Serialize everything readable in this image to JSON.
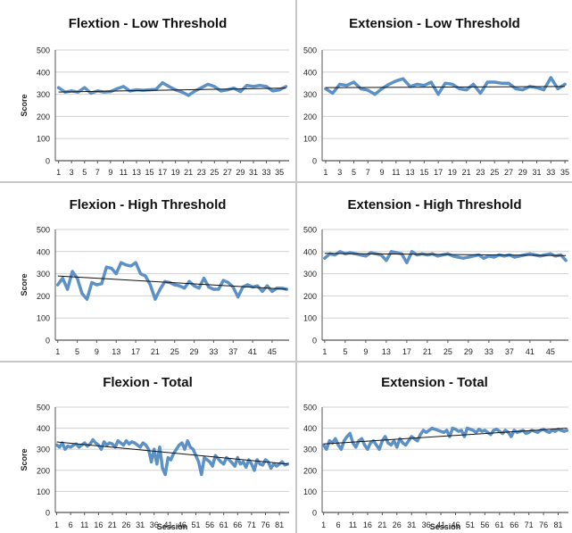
{
  "charts": [
    {
      "title": "Flextion - Low Threshold",
      "ylabel": "Score",
      "xlabel": "",
      "ylim": [
        0,
        500
      ],
      "yticks": [
        "0",
        "100",
        "200",
        "300",
        "400",
        "500"
      ],
      "xtick_labels": [
        "1",
        "3",
        "5",
        "7",
        "9",
        "11",
        "13",
        "15",
        "17",
        "19",
        "21",
        "23",
        "25",
        "27",
        "29",
        "31",
        "33",
        "35"
      ],
      "trend": [
        310,
        328
      ]
    },
    {
      "title": "Extension - Low Threshold",
      "ylabel": "",
      "xlabel": "",
      "ylim": [
        0,
        500
      ],
      "yticks": [
        "0",
        "100",
        "200",
        "300",
        "400",
        "500"
      ],
      "xtick_labels": [
        "1",
        "3",
        "5",
        "7",
        "9",
        "11",
        "13",
        "15",
        "17",
        "19",
        "21",
        "23",
        "25",
        "27",
        "29",
        "31",
        "33",
        "35"
      ],
      "trend": [
        330,
        335
      ]
    },
    {
      "title": "Flexion - High Threshold",
      "ylabel": "Score",
      "xlabel": "",
      "ylim": [
        0,
        500
      ],
      "yticks": [
        "0",
        "100",
        "200",
        "300",
        "400",
        "500"
      ],
      "xtick_labels": [
        "1",
        "5",
        "9",
        "13",
        "17",
        "21",
        "25",
        "29",
        "33",
        "37",
        "41",
        "45"
      ],
      "trend": [
        290,
        230
      ]
    },
    {
      "title": "Extension - High Threshold",
      "ylabel": "",
      "xlabel": "",
      "ylim": [
        0,
        500
      ],
      "yticks": [
        "0",
        "100",
        "200",
        "300",
        "400",
        "500"
      ],
      "xtick_labels": [
        "1",
        "5",
        "9",
        "13",
        "17",
        "21",
        "25",
        "29",
        "33",
        "37",
        "41",
        "45"
      ],
      "trend": [
        392,
        382
      ]
    },
    {
      "title": "Flexion - Total",
      "ylabel": "Score",
      "xlabel": "Session",
      "ylim": [
        0,
        500
      ],
      "yticks": [
        "0",
        "100",
        "200",
        "300",
        "400",
        "500"
      ],
      "xtick_labels": [
        "1",
        "6",
        "11",
        "16",
        "21",
        "26",
        "31",
        "36",
        "41",
        "46",
        "51",
        "56",
        "61",
        "66",
        "71",
        "76",
        "81"
      ],
      "trend": [
        335,
        230
      ]
    },
    {
      "title": "Extension - Total",
      "ylabel": "",
      "xlabel": "Session",
      "ylim": [
        0,
        500
      ],
      "yticks": [
        "0",
        "100",
        "200",
        "300",
        "400",
        "500"
      ],
      "xtick_labels": [
        "1",
        "6",
        "11",
        "16",
        "21",
        "26",
        "31",
        "36",
        "41",
        "46",
        "51",
        "56",
        "61",
        "66",
        "71",
        "76",
        "81"
      ],
      "trend": [
        325,
        400
      ]
    }
  ],
  "chart_data": [
    {
      "type": "line",
      "title": "Flextion - Low Threshold",
      "ylabel": "Score",
      "ylim": [
        0,
        500
      ],
      "x": [
        1,
        2,
        3,
        4,
        5,
        6,
        7,
        8,
        9,
        10,
        11,
        12,
        13,
        14,
        15,
        16,
        17,
        18,
        19,
        20,
        21,
        22,
        23,
        24,
        25,
        26,
        27,
        28,
        29,
        30,
        31,
        32,
        33,
        34,
        35,
        36
      ],
      "values": [
        330,
        310,
        315,
        310,
        330,
        305,
        315,
        310,
        312,
        325,
        335,
        315,
        320,
        318,
        320,
        322,
        352,
        335,
        320,
        310,
        295,
        315,
        330,
        345,
        335,
        315,
        320,
        328,
        312,
        340,
        335,
        340,
        335,
        315,
        320,
        335
      ]
    },
    {
      "type": "line",
      "title": "Extension - Low Threshold",
      "ylim": [
        0,
        500
      ],
      "x": [
        1,
        2,
        3,
        4,
        5,
        6,
        7,
        8,
        9,
        10,
        11,
        12,
        13,
        14,
        15,
        16,
        17,
        18,
        19,
        20,
        21,
        22,
        23,
        24,
        25,
        26,
        27,
        28,
        29,
        30,
        31,
        32,
        33,
        34,
        35
      ],
      "values": [
        325,
        305,
        345,
        340,
        355,
        325,
        318,
        300,
        325,
        345,
        360,
        370,
        335,
        345,
        340,
        355,
        300,
        350,
        345,
        325,
        320,
        345,
        305,
        355,
        355,
        350,
        350,
        325,
        320,
        335,
        330,
        320,
        375,
        325,
        345
      ]
    },
    {
      "type": "line",
      "title": "Flexion - High Threshold",
      "ylabel": "Score",
      "ylim": [
        0,
        500
      ],
      "x": [
        1,
        2,
        3,
        4,
        5,
        6,
        7,
        8,
        9,
        10,
        11,
        12,
        13,
        14,
        15,
        16,
        17,
        18,
        19,
        20,
        21,
        22,
        23,
        24,
        25,
        26,
        27,
        28,
        29,
        30,
        31,
        32,
        33,
        34,
        35,
        36,
        37,
        38,
        39,
        40,
        41,
        42,
        43,
        44,
        45,
        46,
        47,
        48
      ],
      "values": [
        250,
        280,
        230,
        310,
        280,
        210,
        185,
        260,
        250,
        255,
        330,
        325,
        300,
        350,
        340,
        335,
        350,
        300,
        290,
        250,
        185,
        230,
        265,
        260,
        250,
        245,
        235,
        265,
        245,
        235,
        280,
        240,
        230,
        230,
        270,
        260,
        240,
        195,
        240,
        250,
        240,
        245,
        220,
        245,
        220,
        235,
        235,
        230
      ]
    },
    {
      "type": "line",
      "title": "Extension - High Threshold",
      "ylim": [
        0,
        500
      ],
      "x": [
        1,
        2,
        3,
        4,
        5,
        6,
        7,
        8,
        9,
        10,
        11,
        12,
        13,
        14,
        15,
        16,
        17,
        18,
        19,
        20,
        21,
        22,
        23,
        24,
        25,
        26,
        27,
        28,
        29,
        30,
        31,
        32,
        33,
        34,
        35,
        36,
        37,
        38,
        39,
        40,
        41,
        42,
        43,
        44,
        45,
        46,
        47,
        48
      ],
      "values": [
        370,
        390,
        385,
        400,
        390,
        395,
        390,
        385,
        380,
        395,
        390,
        385,
        360,
        400,
        395,
        390,
        350,
        400,
        385,
        390,
        385,
        390,
        380,
        385,
        390,
        380,
        375,
        370,
        375,
        380,
        385,
        370,
        380,
        375,
        385,
        380,
        385,
        375,
        380,
        385,
        390,
        385,
        380,
        385,
        390,
        380,
        385,
        360
      ]
    },
    {
      "type": "line",
      "title": "Flexion - Total",
      "ylabel": "Score",
      "xlabel": "Session",
      "ylim": [
        0,
        500
      ],
      "x": [
        1,
        2,
        3,
        4,
        5,
        6,
        7,
        8,
        9,
        10,
        11,
        12,
        13,
        14,
        15,
        16,
        17,
        18,
        19,
        20,
        21,
        22,
        23,
        24,
        25,
        26,
        27,
        28,
        29,
        30,
        31,
        32,
        33,
        34,
        35,
        36,
        37,
        38,
        39,
        40,
        41,
        42,
        43,
        44,
        45,
        46,
        47,
        48,
        49,
        50,
        51,
        52,
        53,
        54,
        55,
        56,
        57,
        58,
        59,
        60,
        61,
        62,
        63,
        64,
        65,
        66,
        67,
        68,
        69,
        70,
        71,
        72,
        73,
        74,
        75,
        76,
        77,
        78,
        79,
        80,
        81,
        82,
        83,
        84
      ],
      "values": [
        320,
        310,
        330,
        300,
        315,
        310,
        320,
        325,
        310,
        320,
        330,
        315,
        325,
        345,
        330,
        320,
        300,
        335,
        320,
        330,
        325,
        310,
        340,
        330,
        320,
        340,
        325,
        335,
        330,
        320,
        310,
        330,
        320,
        300,
        240,
        300,
        230,
        310,
        210,
        180,
        260,
        250,
        280,
        300,
        320,
        330,
        300,
        340,
        310,
        300,
        270,
        240,
        180,
        260,
        250,
        240,
        220,
        270,
        255,
        240,
        230,
        260,
        250,
        235,
        220,
        260,
        230,
        240,
        215,
        250,
        230,
        200,
        250,
        230,
        225,
        250,
        240,
        210,
        230,
        220,
        230,
        240,
        225,
        230
      ]
    },
    {
      "type": "line",
      "title": "Extension - Total",
      "xlabel": "Session",
      "ylim": [
        0,
        500
      ],
      "x": [
        1,
        2,
        3,
        4,
        5,
        6,
        7,
        8,
        9,
        10,
        11,
        12,
        13,
        14,
        15,
        16,
        17,
        18,
        19,
        20,
        21,
        22,
        23,
        24,
        25,
        26,
        27,
        28,
        29,
        30,
        31,
        32,
        33,
        34,
        35,
        36,
        37,
        38,
        39,
        40,
        41,
        42,
        43,
        44,
        45,
        46,
        47,
        48,
        49,
        50,
        51,
        52,
        53,
        54,
        55,
        56,
        57,
        58,
        59,
        60,
        61,
        62,
        63,
        64,
        65,
        66,
        67,
        68,
        69,
        70,
        71,
        72,
        73,
        74,
        75,
        76,
        77,
        78,
        79,
        80,
        81,
        82,
        83,
        84
      ],
      "values": [
        320,
        300,
        340,
        330,
        350,
        320,
        300,
        340,
        360,
        375,
        330,
        310,
        340,
        350,
        320,
        300,
        330,
        340,
        320,
        300,
        340,
        360,
        330,
        320,
        340,
        310,
        350,
        330,
        320,
        340,
        360,
        350,
        340,
        370,
        390,
        380,
        390,
        400,
        395,
        390,
        385,
        380,
        390,
        360,
        400,
        395,
        385,
        390,
        360,
        400,
        395,
        390,
        380,
        395,
        385,
        390,
        380,
        370,
        390,
        395,
        385,
        375,
        390,
        380,
        360,
        390,
        380,
        385,
        390,
        375,
        380,
        390,
        385,
        380,
        390,
        395,
        385,
        380,
        390,
        385,
        395,
        390,
        385,
        390
      ]
    }
  ]
}
